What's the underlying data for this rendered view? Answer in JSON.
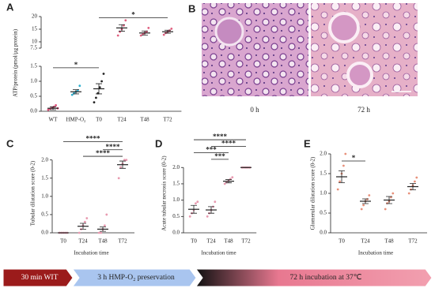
{
  "chart_data": [
    {
      "type": "dotplot",
      "label": "A",
      "ylabel": "ATP/protein (pmol/µg protein)",
      "categories": [
        "WT",
        "HMP-O₂",
        "T0",
        "T24",
        "T48",
        "T72"
      ],
      "colors": [
        "#e0507a",
        "#30b0d0",
        "#222222",
        "#e06080",
        "#e06080",
        "#e06080"
      ],
      "values": [
        0.1,
        0.65,
        0.75,
        15.5,
        13.5,
        14
      ],
      "errors": [
        0.05,
        0.07,
        0.17,
        1.3,
        0.8,
        0.6
      ],
      "points": [
        [
          0.05,
          0.08,
          0.12,
          0.15,
          0.2,
          0.1
        ],
        [
          0.55,
          0.6,
          0.65,
          0.7,
          0.85
        ],
        [
          0.3,
          0.45,
          0.6,
          0.8,
          1.0,
          1.25
        ],
        [
          12.5,
          14,
          15,
          16.5,
          18.5
        ],
        [
          12.5,
          13,
          13.5,
          14,
          15.5
        ],
        [
          12.8,
          13.5,
          14,
          14.5,
          15.2
        ]
      ],
      "y_segments": [
        {
          "ylim": [
            0,
            1.5
          ],
          "yticks": [
            {
              "value": 0,
              "label": "0.0"
            },
            {
              "value": 0.5,
              "label": "0.5"
            },
            {
              "value": 1,
              "label": "1.0"
            },
            1.5
          ]
        },
        {
          "ylim": [
            7.5,
            20
          ],
          "yticks": [
            7.5,
            10,
            15,
            20
          ]
        }
      ],
      "significance": [
        {
          "pair": [
            "WT",
            "T0"
          ],
          "y": 1.45,
          "label": "*"
        },
        {
          "pair": [
            "T0",
            "T72"
          ],
          "y": 19.5,
          "label": "*"
        }
      ]
    },
    {
      "type": "dotplot",
      "label": "C",
      "ylabel": "Tubular dilatation score (0-2)",
      "xlabel": "Incubation time",
      "categories": [
        "T0",
        "T24",
        "T48",
        "T72"
      ],
      "colors": [
        "#e89ab0",
        "#e89ab0",
        "#e89ab0",
        "#e89ab0"
      ],
      "values": [
        0,
        0.18,
        0.1,
        1.87
      ],
      "errors": [
        0,
        0.08,
        0.06,
        0.1
      ],
      "points": [
        [
          0,
          0,
          0,
          0,
          0
        ],
        [
          0,
          0.1,
          0.2,
          0.3,
          0.4
        ],
        [
          0,
          0,
          0.1,
          0.2,
          0.5
        ],
        [
          1.5,
          1.8,
          1.9,
          2.0,
          2.0
        ]
      ],
      "ylim": [
        0,
        2.6
      ],
      "yticks": [
        {
          "value": 0,
          "label": "0.0"
        },
        {
          "value": 0.5,
          "label": "0.5"
        },
        {
          "value": 1,
          "label": "1.0"
        },
        1.5,
        {
          "value": 2,
          "label": "2.0"
        }
      ],
      "significance": [
        {
          "pair": [
            "T0",
            "T72"
          ],
          "y": 2.5,
          "label": "****"
        },
        {
          "pair": [
            "T48",
            "T72"
          ],
          "y": 2.28,
          "label": "****"
        },
        {
          "pair": [
            "T24",
            "T72"
          ],
          "y": 2.1,
          "label": "****"
        }
      ]
    },
    {
      "type": "dotplot",
      "label": "D",
      "ylabel": "Acute tubular necrosis score (0-2)",
      "xlabel": "Incubation time",
      "categories": [
        "T0",
        "T24",
        "T48",
        "T72"
      ],
      "colors": [
        "#e89ab0",
        "#e89ab0",
        "#e89ab0",
        "#e89ab0"
      ],
      "values": [
        0.72,
        0.7,
        1.58,
        2.0
      ],
      "errors": [
        0.12,
        0.1,
        0.05,
        0
      ],
      "points": [
        [
          0.5,
          0.6,
          0.7,
          0.9,
          0.95
        ],
        [
          0.5,
          0.6,
          0.7,
          0.8,
          0.95
        ],
        [
          1.5,
          1.55,
          1.6,
          1.65,
          1.7
        ],
        [
          2,
          2,
          2,
          2,
          2
        ]
      ],
      "ylim": [
        0,
        2.9
      ],
      "yticks": [
        {
          "value": 0,
          "label": "0.0"
        },
        {
          "value": 0.5,
          "label": "0.5"
        },
        {
          "value": 1,
          "label": "1.0"
        },
        1.5,
        {
          "value": 2,
          "label": "2.0"
        }
      ],
      "significance": [
        {
          "pair": [
            "T0",
            "T72"
          ],
          "y": 2.85,
          "label": "****"
        },
        {
          "pair": [
            "T24",
            "T72"
          ],
          "y": 2.65,
          "label": "****"
        },
        {
          "pair": [
            "T0",
            "T48"
          ],
          "y": 2.45,
          "label": "***"
        },
        {
          "pair": [
            "T24",
            "T48"
          ],
          "y": 2.25,
          "label": "***"
        }
      ]
    },
    {
      "type": "dotplot",
      "label": "E",
      "ylabel": "Glomerular dilatation score (0-2)",
      "xlabel": "Incubation time",
      "categories": [
        "T0",
        "T24",
        "T48",
        "T72"
      ],
      "colors": [
        "#e8907a",
        "#e8907a",
        "#e8907a",
        "#e8907a"
      ],
      "values": [
        1.42,
        0.8,
        0.83,
        1.17
      ],
      "errors": [
        0.15,
        0.06,
        0.09,
        0.08
      ],
      "points": [
        [
          1.1,
          1.3,
          1.5,
          1.7,
          2.0
        ],
        [
          0.6,
          0.7,
          0.8,
          0.85,
          0.95
        ],
        [
          0.6,
          0.75,
          0.8,
          0.9,
          1.0
        ],
        [
          1.0,
          1.1,
          1.2,
          1.3,
          1.4
        ]
      ],
      "ylim": [
        0,
        2.0
      ],
      "yticks": [
        {
          "value": 0,
          "label": "0.0"
        },
        {
          "value": 0.5,
          "label": "0.5"
        },
        {
          "value": 1,
          "label": "1.0"
        },
        1.5,
        {
          "value": 2,
          "label": "2.0"
        }
      ],
      "significance": [
        {
          "pair": [
            "T0",
            "T24"
          ],
          "y": 1.82,
          "label": "*"
        }
      ]
    }
  ],
  "histology": {
    "label": "B",
    "images": [
      "0 h",
      "72 h"
    ]
  },
  "timeline": {
    "stages": [
      {
        "label": "30 min WIT",
        "color": "#9b1b1b"
      },
      {
        "label": "3 h HMP-O₂ preservation",
        "color": "#a9c5ef"
      },
      {
        "label": "72 h incubation at 37℃",
        "color": "#f2a0b0"
      }
    ]
  }
}
